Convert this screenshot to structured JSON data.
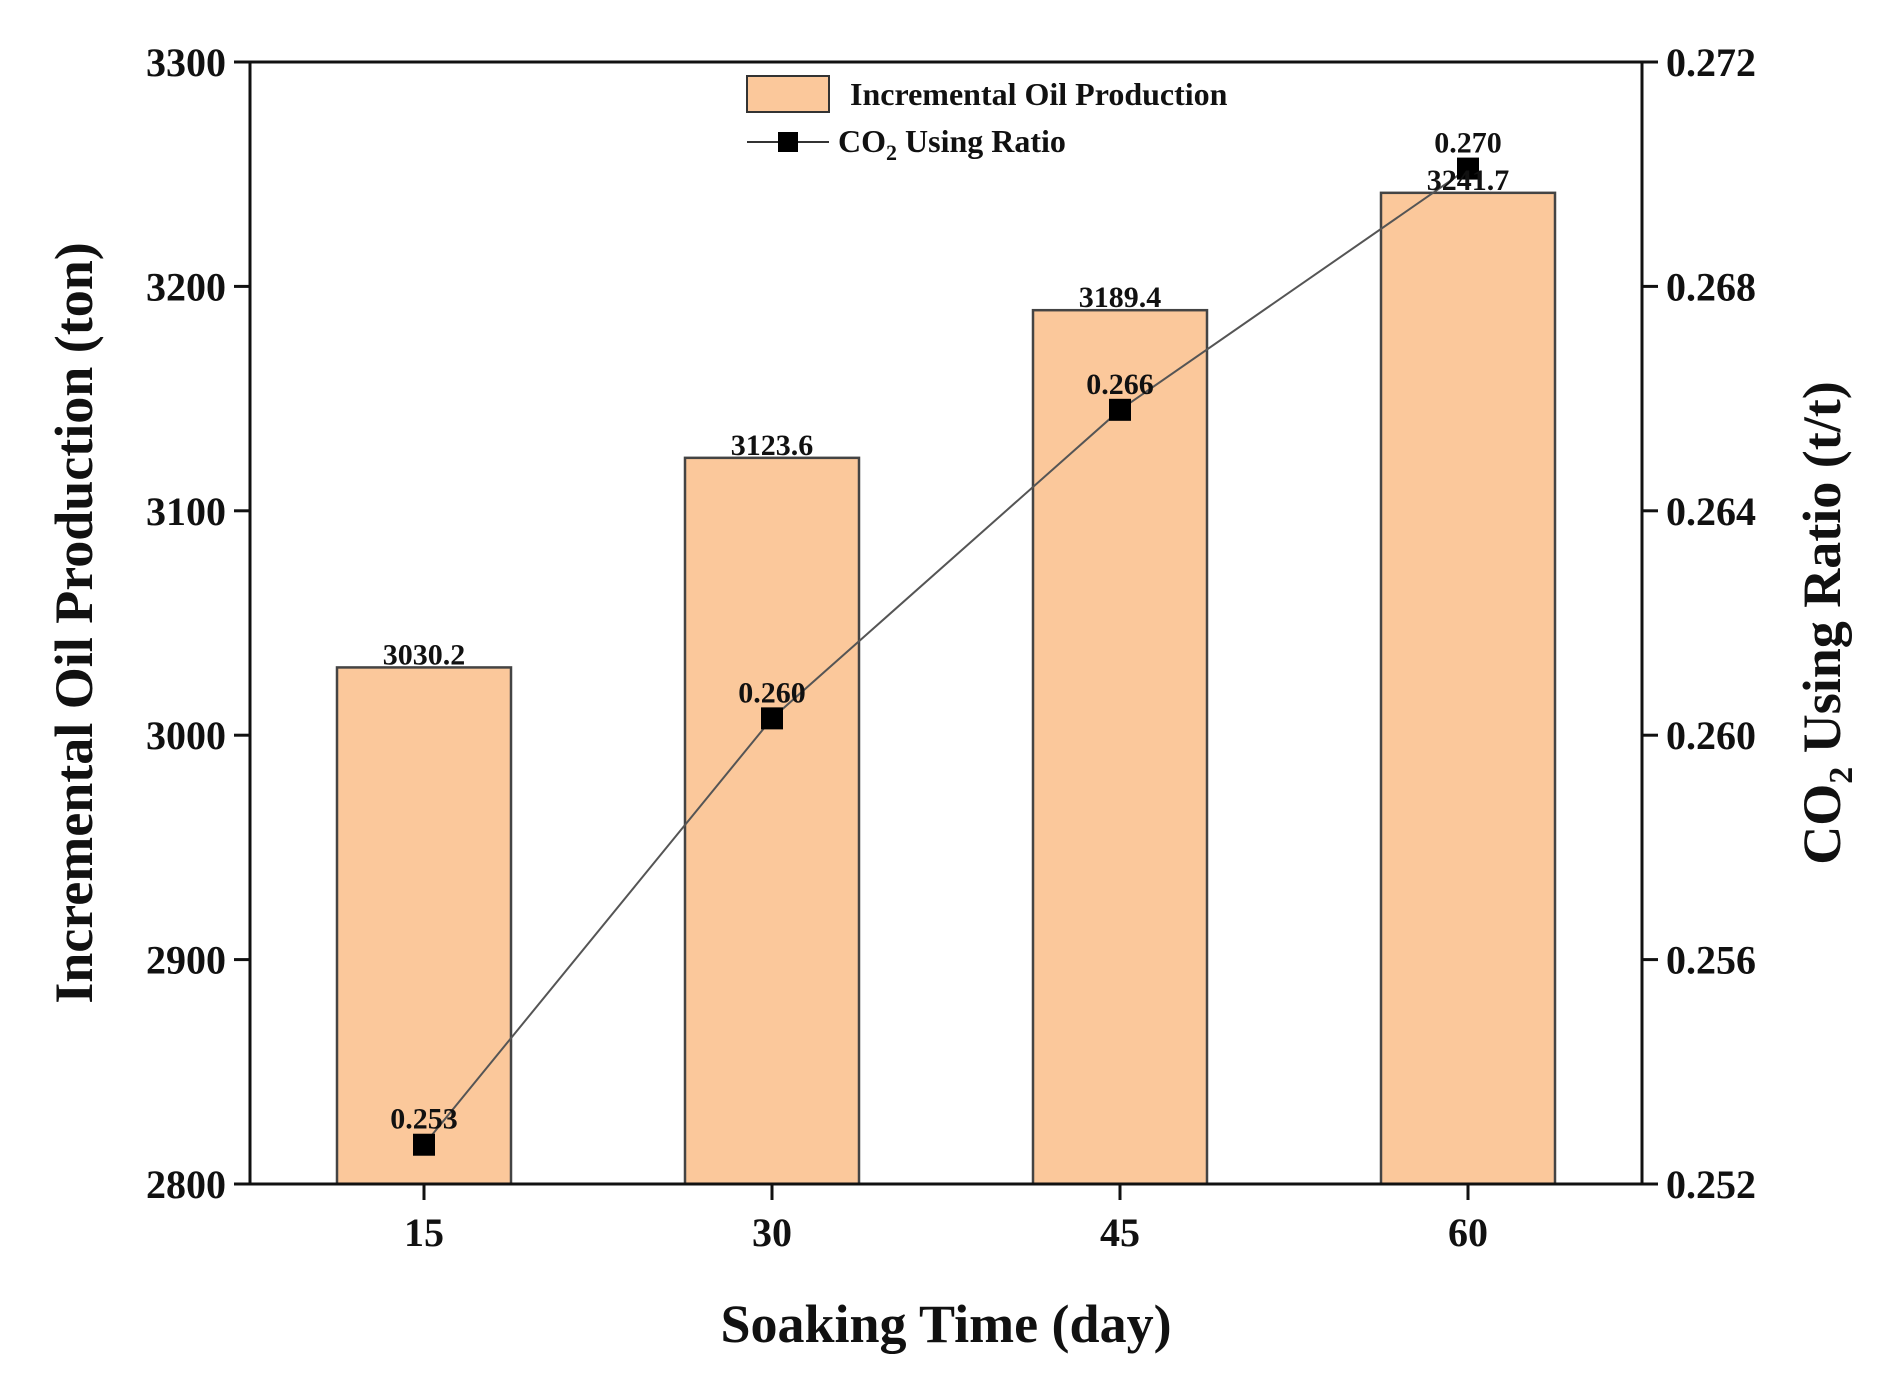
{
  "chart_data": {
    "type": "bar+line",
    "categories": [
      "15",
      "30",
      "45",
      "60"
    ],
    "xlabel": "Soaking Time (day)",
    "series": [
      {
        "name": "Incremental Oil Production",
        "kind": "bar",
        "axis": "left",
        "values": [
          3030.2,
          3123.6,
          3189.4,
          3241.7
        ],
        "labels": [
          "3030.2",
          "3123.6",
          "3189.4",
          "3241.7"
        ],
        "color": "#fbc89b"
      },
      {
        "name_main": "CO",
        "name_sub": "2",
        "name_rest": " Using Ratio",
        "kind": "line",
        "axis": "right",
        "values": [
          0.2527,
          0.2603,
          0.2658,
          0.2701
        ],
        "labels": [
          "0.253",
          "0.260",
          "0.266",
          "0.270"
        ],
        "color": "#555555"
      }
    ],
    "left_axis": {
      "title": "Incremental Oil Production (ton)",
      "ylim": [
        2800,
        3300
      ],
      "ticks": [
        "2800",
        "2900",
        "3000",
        "3100",
        "3200",
        "3300"
      ]
    },
    "right_axis": {
      "title_main": "CO",
      "title_sub": "2",
      "title_rest": " Using Ratio (t/t)",
      "ylim": [
        0.252,
        0.272
      ],
      "ticks": [
        "0.252",
        "0.256",
        "0.260",
        "0.264",
        "0.268",
        "0.272"
      ]
    },
    "legend_position": "top-center",
    "grid": false
  }
}
